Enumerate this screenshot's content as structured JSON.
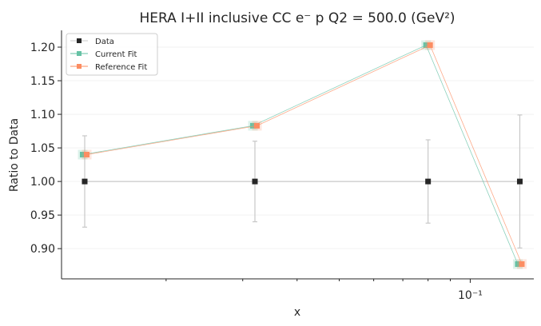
{
  "chart_data": {
    "type": "line",
    "title": "HERA I+II inclusive CC e⁻ p Q2 = 500.0 (GeV²)",
    "xlabel": "x",
    "ylabel": "Ratio to Data",
    "xscale": "log",
    "xlim": [
      0.0115,
      0.14
    ],
    "ylim": [
      0.855,
      1.225
    ],
    "x_tick_labels": [
      "10⁻¹"
    ],
    "x_major_ticks": [
      0.1
    ],
    "x_minor_ticks": [
      0.02,
      0.03,
      0.04,
      0.05,
      0.06,
      0.07,
      0.08,
      0.09
    ],
    "y_ticks": [
      0.9,
      0.95,
      1.0,
      1.05,
      1.1,
      1.15,
      1.2
    ],
    "y_tick_labels": [
      "0.90",
      "0.95",
      "1.00",
      "1.05",
      "1.10",
      "1.15",
      "1.20"
    ],
    "grid": "y-faint",
    "legend_position": "top-left",
    "x": [
      0.013,
      0.032,
      0.08,
      0.13
    ],
    "series": [
      {
        "name": "Data",
        "color": "#262626",
        "values": [
          1.0,
          1.0,
          1.0,
          1.0
        ],
        "errors": [
          0.068,
          0.06,
          0.062,
          0.099
        ],
        "marker": "square"
      },
      {
        "name": "Current Fit",
        "color": "#66c2a5",
        "values": [
          1.04,
          1.083,
          1.203,
          0.877
        ],
        "marker": "square"
      },
      {
        "name": "Reference Fit",
        "color": "#fc8d62",
        "values": [
          1.04,
          1.083,
          1.203,
          0.877
        ],
        "marker": "square"
      }
    ]
  }
}
